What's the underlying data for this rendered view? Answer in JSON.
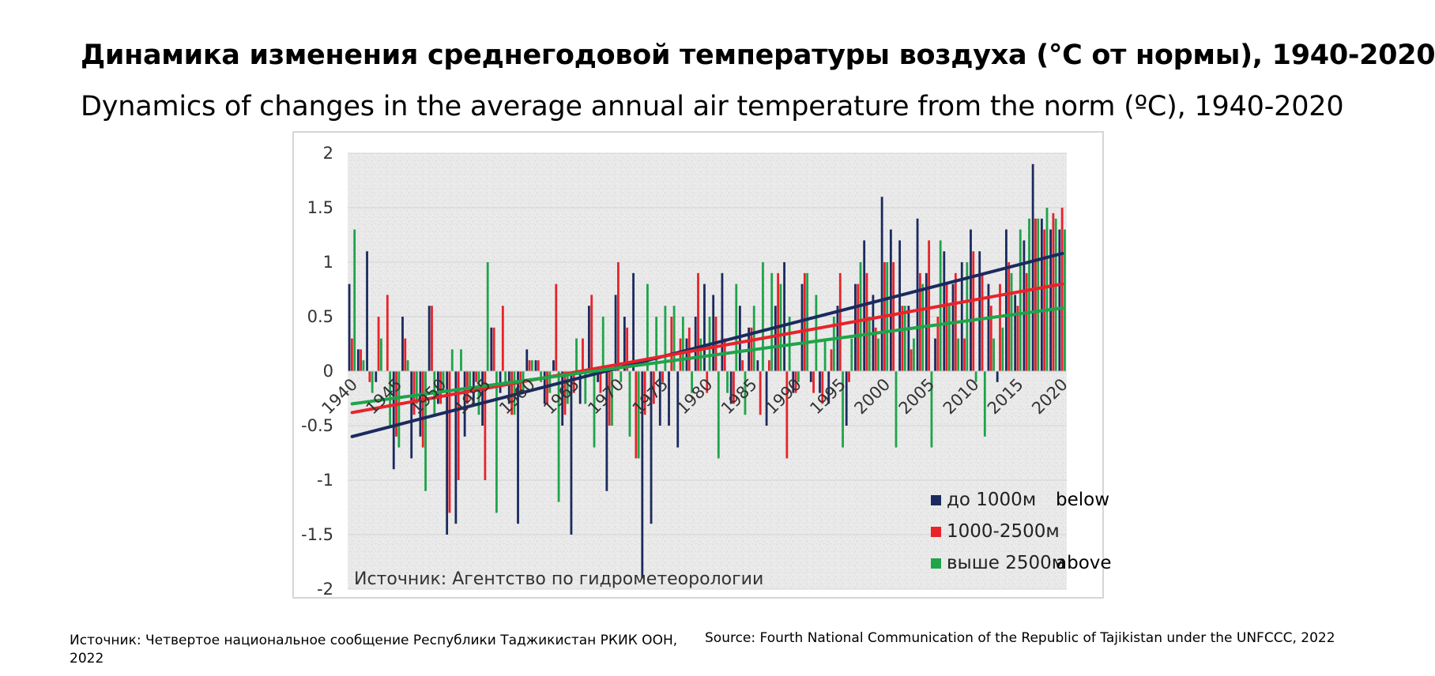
{
  "title_ru": "Динамика изменения среднегодовой температуры воздуха (°C от нормы), 1940-2020",
  "title_en": "Dynamics of changes in the average annual air temperature from the norm (ºC), 1940-2020",
  "source_ru": "Источник: Четвертое национальное сообщение Республики Таджикистан РКИК ООН, 2022",
  "source_en": "Source: Fourth National Communication of the Republic of Tajikistan under the UNFCCC, 2022",
  "chart_data": {
    "type": "bar",
    "title": "",
    "xlabel": "",
    "ylabel": "",
    "ylim": [
      -2,
      2
    ],
    "yticks": [
      "2",
      "1.5",
      "1",
      "0.5",
      "0",
      "-0.5",
      "-1",
      "-1.5",
      "-2"
    ],
    "ytick_values": [
      2,
      1.5,
      1,
      0.5,
      0,
      -0.5,
      -1,
      -1.5,
      -2
    ],
    "xtick_labels": [
      "1940",
      "1945",
      "1950",
      "1955",
      "1960",
      "1965",
      "1970",
      "1975",
      "1980",
      "1985",
      "1990",
      "1995",
      "2000",
      "2005",
      "2010",
      "2015",
      "2020"
    ],
    "xtick_years": [
      1940,
      1945,
      1950,
      1955,
      1960,
      1965,
      1970,
      1975,
      1980,
      1985,
      1990,
      1995,
      2000,
      2005,
      2010,
      2015,
      2020
    ],
    "categories": [
      1940,
      1941,
      1942,
      1943,
      1944,
      1945,
      1946,
      1947,
      1948,
      1949,
      1950,
      1951,
      1952,
      1953,
      1954,
      1955,
      1956,
      1957,
      1958,
      1959,
      1960,
      1961,
      1962,
      1963,
      1964,
      1965,
      1966,
      1967,
      1968,
      1969,
      1970,
      1971,
      1972,
      1973,
      1974,
      1975,
      1976,
      1977,
      1978,
      1979,
      1980,
      1981,
      1982,
      1983,
      1984,
      1985,
      1986,
      1987,
      1988,
      1989,
      1990,
      1991,
      1992,
      1993,
      1994,
      1995,
      1996,
      1997,
      1998,
      1999,
      2000,
      2001,
      2002,
      2003,
      2004,
      2005,
      2006,
      2007,
      2008,
      2009,
      2010,
      2011,
      2012,
      2013,
      2014,
      2015,
      2016,
      2017,
      2018,
      2019,
      2020
    ],
    "legend_position": "bottom-right",
    "grid": true,
    "source_note": "Источник: Агентство по гидрометеорологии",
    "series": [
      {
        "name": "до 1000м",
        "name_suffix": "below",
        "color": "#1b2a5e",
        "values": [
          0.8,
          0.2,
          1.1,
          -0.1,
          0.0,
          -0.9,
          0.5,
          -0.8,
          -0.6,
          0.6,
          -0.3,
          -1.5,
          -1.4,
          -0.6,
          -0.3,
          -0.5,
          0.4,
          -0.2,
          -0.3,
          -1.4,
          0.2,
          0.1,
          -0.3,
          0.1,
          -0.5,
          -1.5,
          -0.3,
          0.6,
          -0.1,
          -1.1,
          0.7,
          0.5,
          0.9,
          -1.9,
          -1.4,
          -0.5,
          -0.5,
          -0.7,
          0.3,
          0.5,
          0.8,
          0.7,
          0.9,
          -0.3,
          0.6,
          0.4,
          0.1,
          -0.5,
          0.6,
          1.0,
          -0.2,
          0.8,
          -0.1,
          -0.2,
          -0.3,
          0.6,
          -0.5,
          0.8,
          1.2,
          0.7,
          1.6,
          1.3,
          1.2,
          0.6,
          1.4,
          0.9,
          0.3,
          1.1,
          0.8,
          1.0,
          1.3,
          1.1,
          0.8,
          -0.1,
          1.3,
          0.7,
          1.2,
          1.9,
          1.4,
          1.3,
          1.3
        ],
        "trend": [
          -0.6,
          1.08
        ]
      },
      {
        "name": "1000-2500м",
        "name_suffix": "",
        "color": "#e8232a",
        "values": [
          0.3,
          0.2,
          -0.1,
          0.5,
          0.7,
          -0.6,
          0.3,
          -0.4,
          -0.7,
          0.6,
          -0.3,
          -1.3,
          -1.0,
          -0.3,
          -0.1,
          -1.0,
          0.4,
          0.6,
          -0.4,
          -0.2,
          0.1,
          0.1,
          -0.3,
          0.8,
          -0.4,
          -0.2,
          0.3,
          0.7,
          -0.2,
          -0.5,
          1.0,
          0.4,
          -0.8,
          -0.4,
          -0.3,
          -0.1,
          0.5,
          0.3,
          0.4,
          0.9,
          -0.2,
          0.5,
          0.3,
          -0.3,
          0.1,
          0.4,
          -0.4,
          0.1,
          0.9,
          -0.8,
          -0.2,
          0.9,
          -0.2,
          -0.3,
          0.2,
          0.9,
          -0.1,
          0.8,
          0.9,
          0.4,
          1.0,
          1.0,
          0.6,
          0.2,
          0.9,
          1.2,
          0.5,
          0.8,
          0.9,
          0.3,
          1.1,
          0.9,
          0.6,
          0.8,
          1.0,
          0.6,
          0.9,
          1.4,
          1.3,
          1.45,
          1.5
        ],
        "trend": [
          -0.38,
          0.8
        ]
      },
      {
        "name": "выше 2500м",
        "name_suffix": "above",
        "color": "#1fa44a",
        "values": [
          1.3,
          0.1,
          -0.2,
          0.3,
          -0.5,
          -0.7,
          0.1,
          -0.3,
          -1.1,
          -0.4,
          -0.2,
          0.2,
          0.2,
          -0.2,
          -0.4,
          1.0,
          -1.3,
          -0.1,
          -0.4,
          -0.2,
          0.1,
          -0.1,
          -0.2,
          -1.2,
          -0.3,
          0.3,
          -0.3,
          -0.7,
          0.5,
          -0.5,
          -0.1,
          -0.6,
          -0.8,
          0.8,
          0.5,
          0.6,
          0.6,
          0.5,
          -0.2,
          0.3,
          0.5,
          -0.8,
          -0.2,
          0.8,
          -0.4,
          0.6,
          1.0,
          0.9,
          0.8,
          0.5,
          -0.1,
          0.9,
          0.7,
          0.3,
          0.5,
          -0.7,
          0.3,
          1.0,
          0.5,
          0.3,
          1.0,
          -0.7,
          0.6,
          0.3,
          0.8,
          -0.7,
          1.2,
          0.6,
          0.3,
          1.0,
          -0.1,
          -0.6,
          0.3,
          0.4,
          0.9,
          1.3,
          1.4,
          1.4,
          1.5,
          1.4,
          1.3
        ],
        "trend": [
          -0.3,
          0.58
        ]
      }
    ]
  }
}
